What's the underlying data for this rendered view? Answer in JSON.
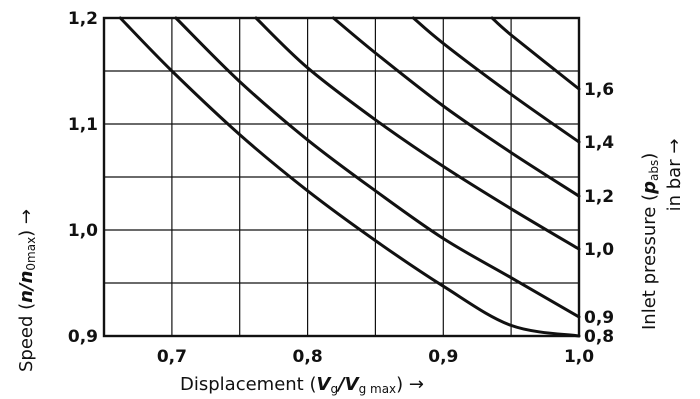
{
  "chart_data": {
    "type": "line",
    "title": "",
    "xlabel": {
      "prefix": "Displacement (",
      "var1": "V",
      "sub1": "g",
      "slash": "/",
      "var2": "V",
      "sub2": "g max",
      "suffix": ") →"
    },
    "ylabel": {
      "prefix": "Speed (",
      "var1": "n",
      "slash": "/",
      "var2": "n",
      "sub2": "0max",
      "suffix": ") →"
    },
    "y2label": {
      "line1_prefix": "Inlet pressure (",
      "var": "p",
      "sub": "abs",
      "line1_suffix": ")",
      "line2": "in bar →"
    },
    "xlim": [
      0.65,
      1.0
    ],
    "ylim": [
      0.9,
      1.2
    ],
    "grid": true,
    "x_ticks": [
      "0,7",
      "0,8",
      "0,9",
      "1,0"
    ],
    "y_ticks": [
      "0,9",
      "1,0",
      "1,1",
      "1,2"
    ],
    "y2_ticks": [
      "0,8",
      "0,9",
      "1,0",
      "1,2",
      "1,4",
      "1,6"
    ],
    "series": [
      {
        "right_label": "0,8",
        "x": [
          0.662,
          0.7,
          0.75,
          0.8,
          0.85,
          0.9,
          0.95,
          1.0
        ],
        "y": [
          1.2,
          1.15,
          1.09,
          1.037,
          0.99,
          0.947,
          0.91,
          0.9
        ]
      },
      {
        "right_label": "0,9",
        "x": [
          0.703,
          0.75,
          0.8,
          0.85,
          0.9,
          0.95,
          1.0
        ],
        "y": [
          1.2,
          1.14,
          1.085,
          1.037,
          0.992,
          0.955,
          0.918
        ]
      },
      {
        "right_label": "1,0",
        "x": [
          0.762,
          0.8,
          0.85,
          0.9,
          0.95,
          1.0
        ],
        "y": [
          1.2,
          1.153,
          1.104,
          1.06,
          1.02,
          0.982
        ]
      },
      {
        "right_label": "1,2",
        "x": [
          0.819,
          0.85,
          0.9,
          0.95,
          1.0
        ],
        "y": [
          1.2,
          1.167,
          1.117,
          1.073,
          1.032
        ]
      },
      {
        "right_label": "1,4",
        "x": [
          0.878,
          0.9,
          0.95,
          1.0
        ],
        "y": [
          1.2,
          1.176,
          1.128,
          1.083
        ]
      },
      {
        "right_label": "1,6",
        "x": [
          0.936,
          0.95,
          1.0
        ],
        "y": [
          1.2,
          1.184,
          1.133
        ]
      }
    ]
  }
}
